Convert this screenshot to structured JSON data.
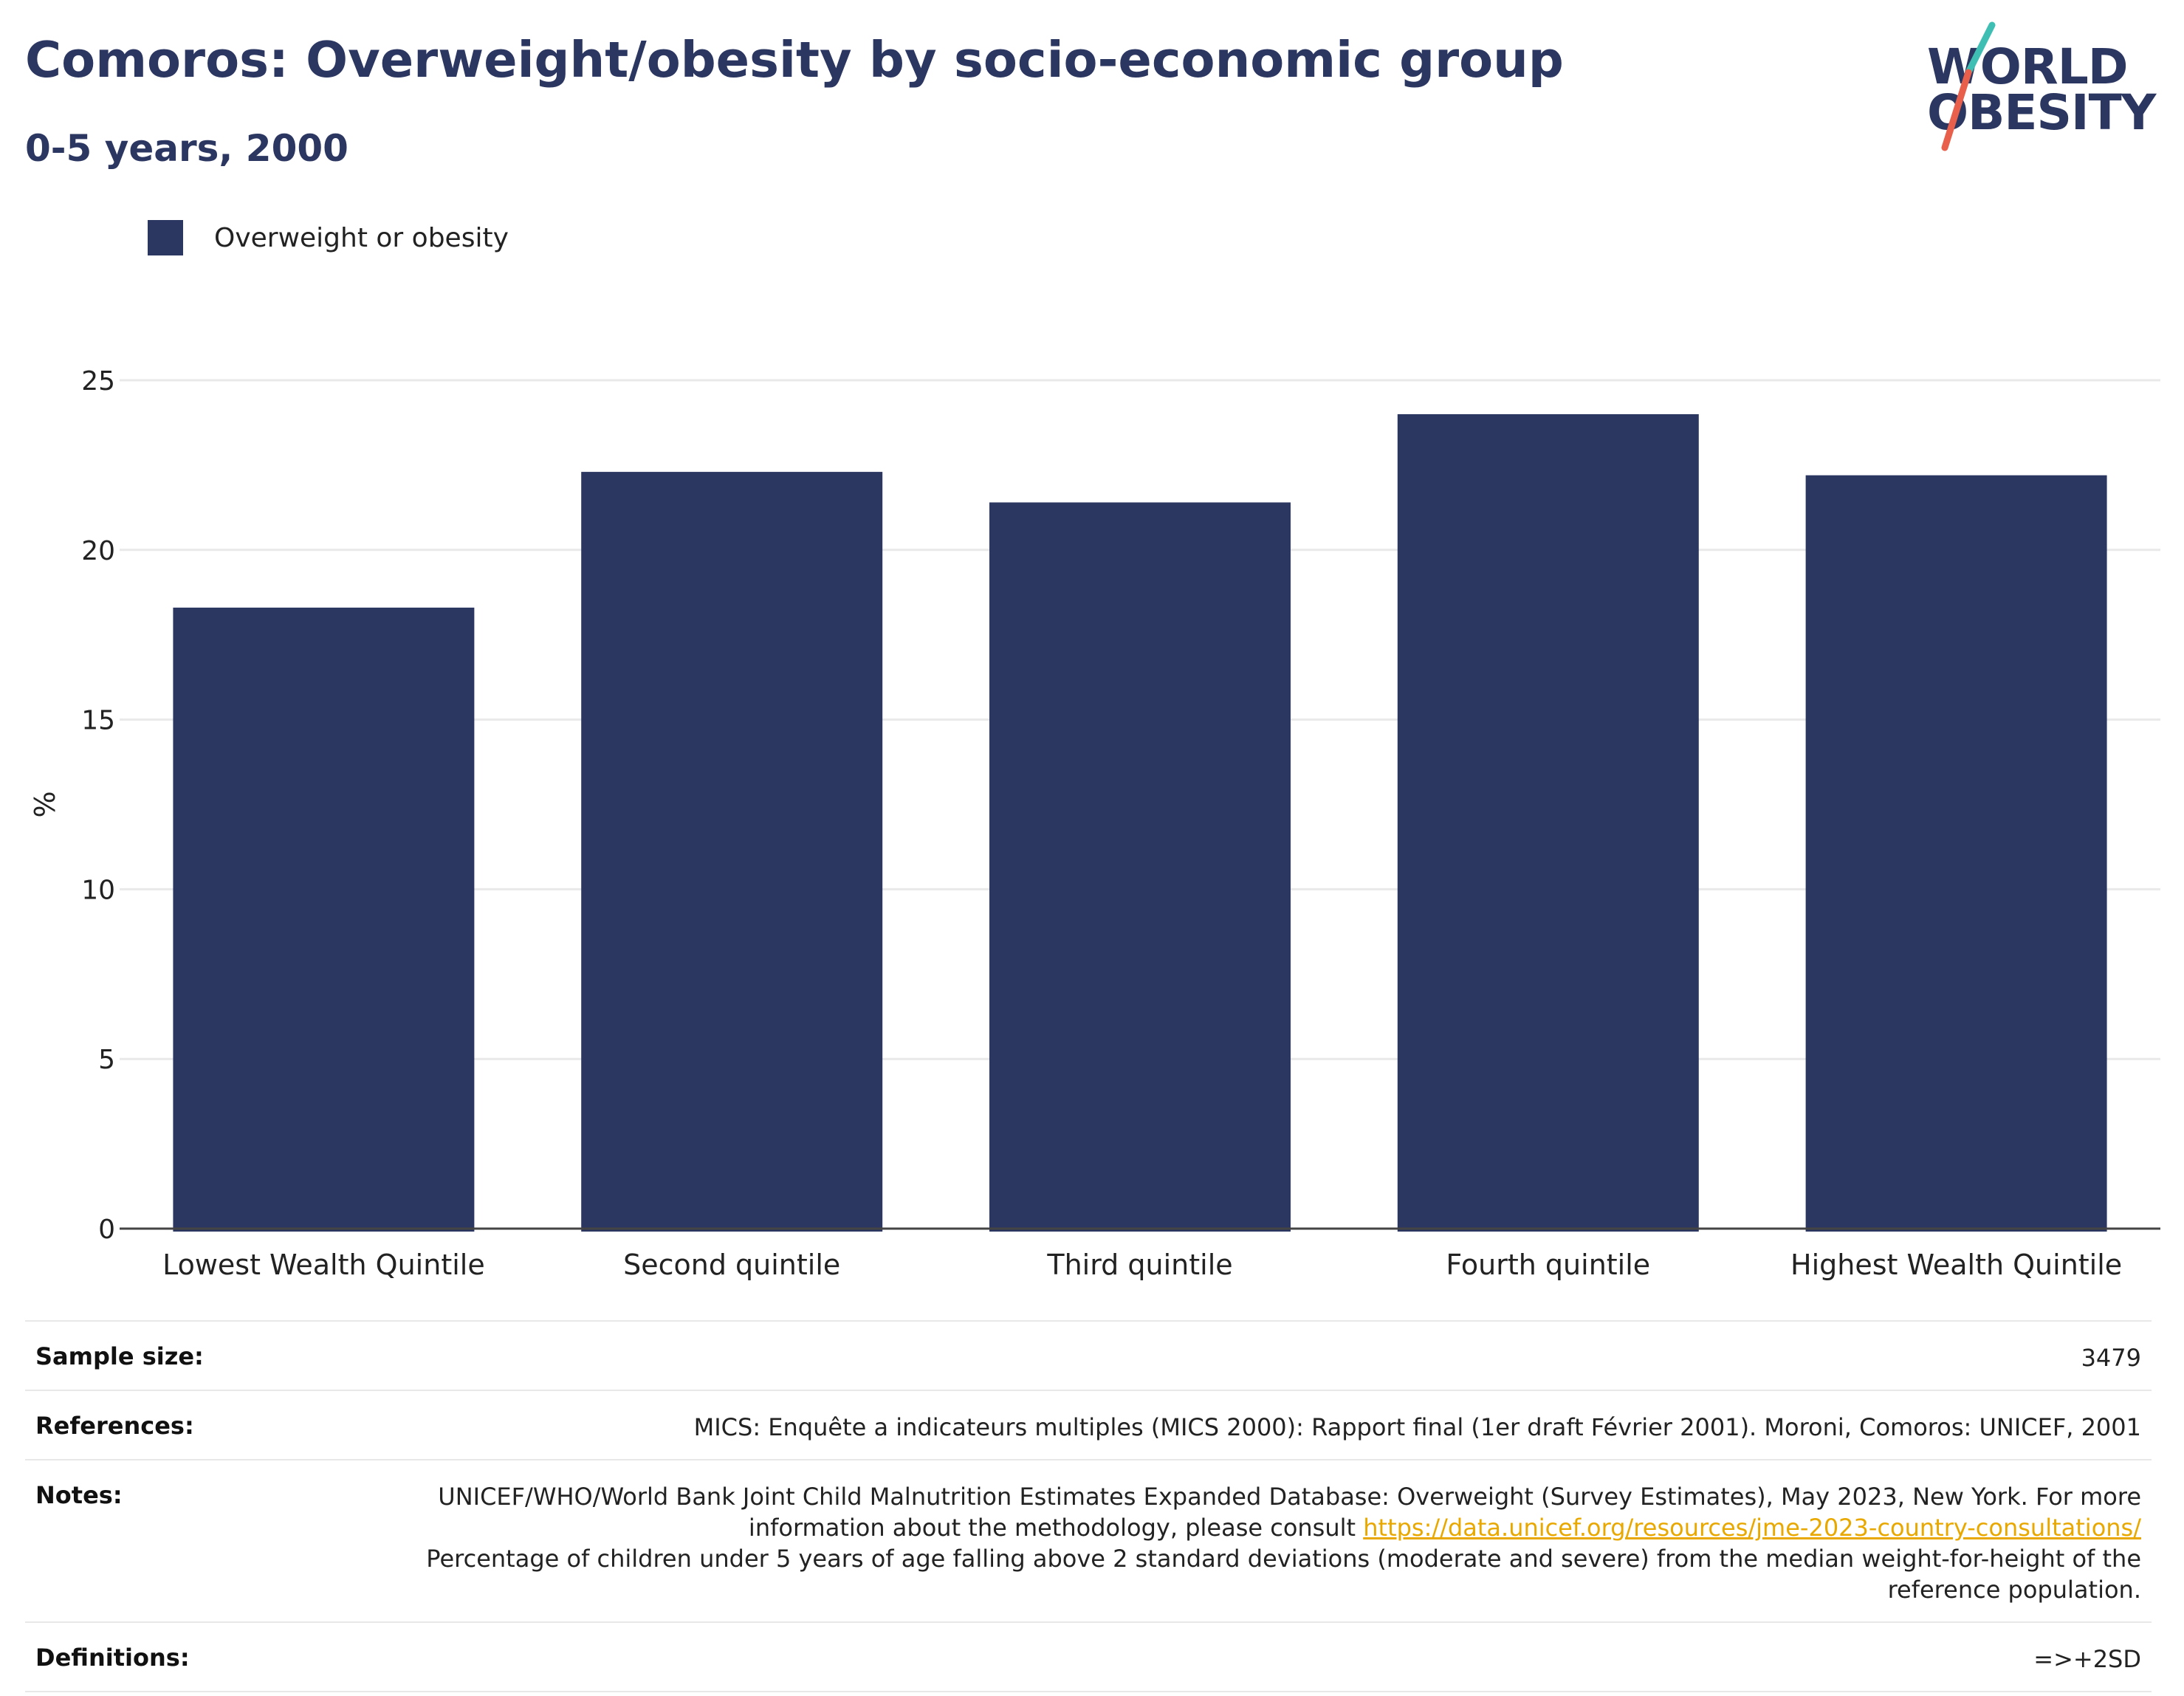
{
  "title": "Comoros: Overweight/obesity by socio-economic group",
  "subtitle": "0-5 years, 2000",
  "logo": {
    "line1": "WORLD",
    "line2": "OBESITY"
  },
  "colors": {
    "bar": "#2b3661",
    "title": "#2b3661",
    "link": "#e8a800",
    "logo_teal": "#3fbfb3",
    "logo_red": "#e8604c"
  },
  "legend": {
    "label": "Overweight or obesity"
  },
  "chart_data": {
    "type": "bar",
    "categories": [
      "Lowest Wealth Quintile",
      "Second quintile",
      "Third quintile",
      "Fourth quintile",
      "Highest Wealth Quintile"
    ],
    "series": [
      {
        "name": "Overweight or obesity",
        "values": [
          18.3,
          22.3,
          21.4,
          24.0,
          22.2
        ]
      }
    ],
    "ylabel": "%",
    "ylim": [
      0,
      25
    ],
    "yticks": [
      0,
      5,
      10,
      15,
      20,
      25
    ],
    "grid": true,
    "legend_position": "top-left"
  },
  "info": {
    "sample_size_label": "Sample size:",
    "sample_size_value": "3479",
    "references_label": "References:",
    "references_value": "MICS: Enquête a indicateurs multiples (MICS 2000): Rapport final (1er draft Février 2001). Moroni, Comoros: UNICEF, 2001",
    "notes_label": "Notes:",
    "notes_value_1": "UNICEF/WHO/World Bank Joint Child Malnutrition Estimates Expanded Database: Overweight (Survey Estimates), May 2023, New York. For more information about the methodology, please consult ",
    "notes_link": "https://data.unicef.org/resources/jme-2023-country-consultations/",
    "notes_value_2": "Percentage of children under 5 years of age falling above 2 standard deviations (moderate and severe) from the median weight-for-height of the reference population.",
    "definitions_label": "Definitions:",
    "definitions_value": "=>+2SD"
  }
}
